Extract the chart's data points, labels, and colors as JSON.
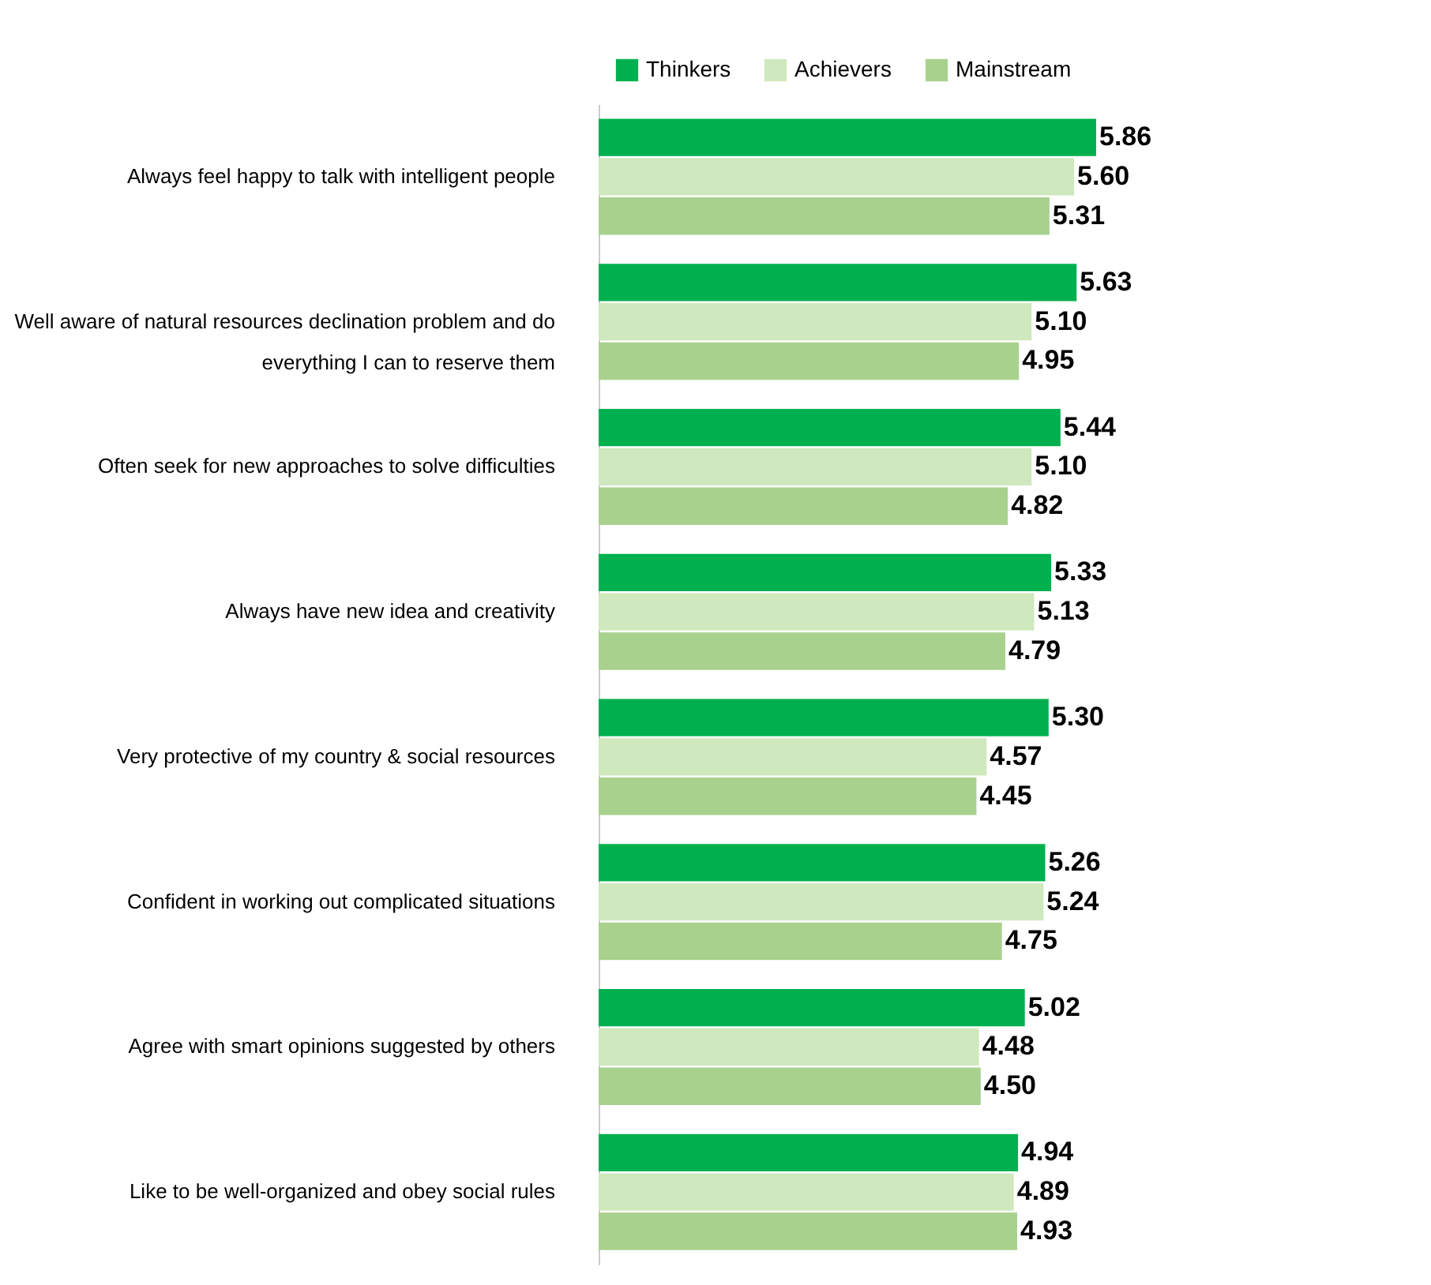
{
  "chart_data": {
    "type": "bar",
    "orientation": "horizontal",
    "categories": [
      "Always feel happy to talk with intelligent people",
      "Well aware of natural resources declination problem and do everything I can to reserve them",
      "Often seek for new approaches to solve difficulties",
      "Always have new idea and creativity",
      "Very protective of my country & social resources",
      "Confident in working out complicated situations",
      "Agree with smart opinions suggested by others",
      "Like to be well-organized and obey social rules"
    ],
    "series": [
      {
        "name": "Thinkers",
        "color": "#00b04f",
        "values": [
          5.86,
          5.63,
          5.44,
          5.33,
          5.3,
          5.26,
          5.02,
          4.94
        ],
        "value_labels": [
          "5.86",
          "5.63",
          "5.44",
          "5.33",
          "5.30",
          "5.26",
          "5.02",
          "4.94"
        ]
      },
      {
        "name": "Achievers",
        "color": "#cfe8bd",
        "values": [
          5.6,
          5.1,
          5.1,
          5.13,
          4.57,
          5.24,
          4.48,
          4.89
        ],
        "value_labels": [
          "5.60",
          "5.10",
          "5.10",
          "5.13",
          "4.57",
          "5.24",
          "4.48",
          "4.89"
        ]
      },
      {
        "name": "Mainstream",
        "color": "#a9d18e",
        "values": [
          5.31,
          4.95,
          4.82,
          4.79,
          4.45,
          4.75,
          4.5,
          4.93
        ],
        "value_labels": [
          "5.31",
          "4.95",
          "4.82",
          "4.79",
          "4.45",
          "4.75",
          "4.50",
          "4.93"
        ]
      }
    ],
    "legend": "top right",
    "grid": false,
    "tick_labels": "y"
  }
}
